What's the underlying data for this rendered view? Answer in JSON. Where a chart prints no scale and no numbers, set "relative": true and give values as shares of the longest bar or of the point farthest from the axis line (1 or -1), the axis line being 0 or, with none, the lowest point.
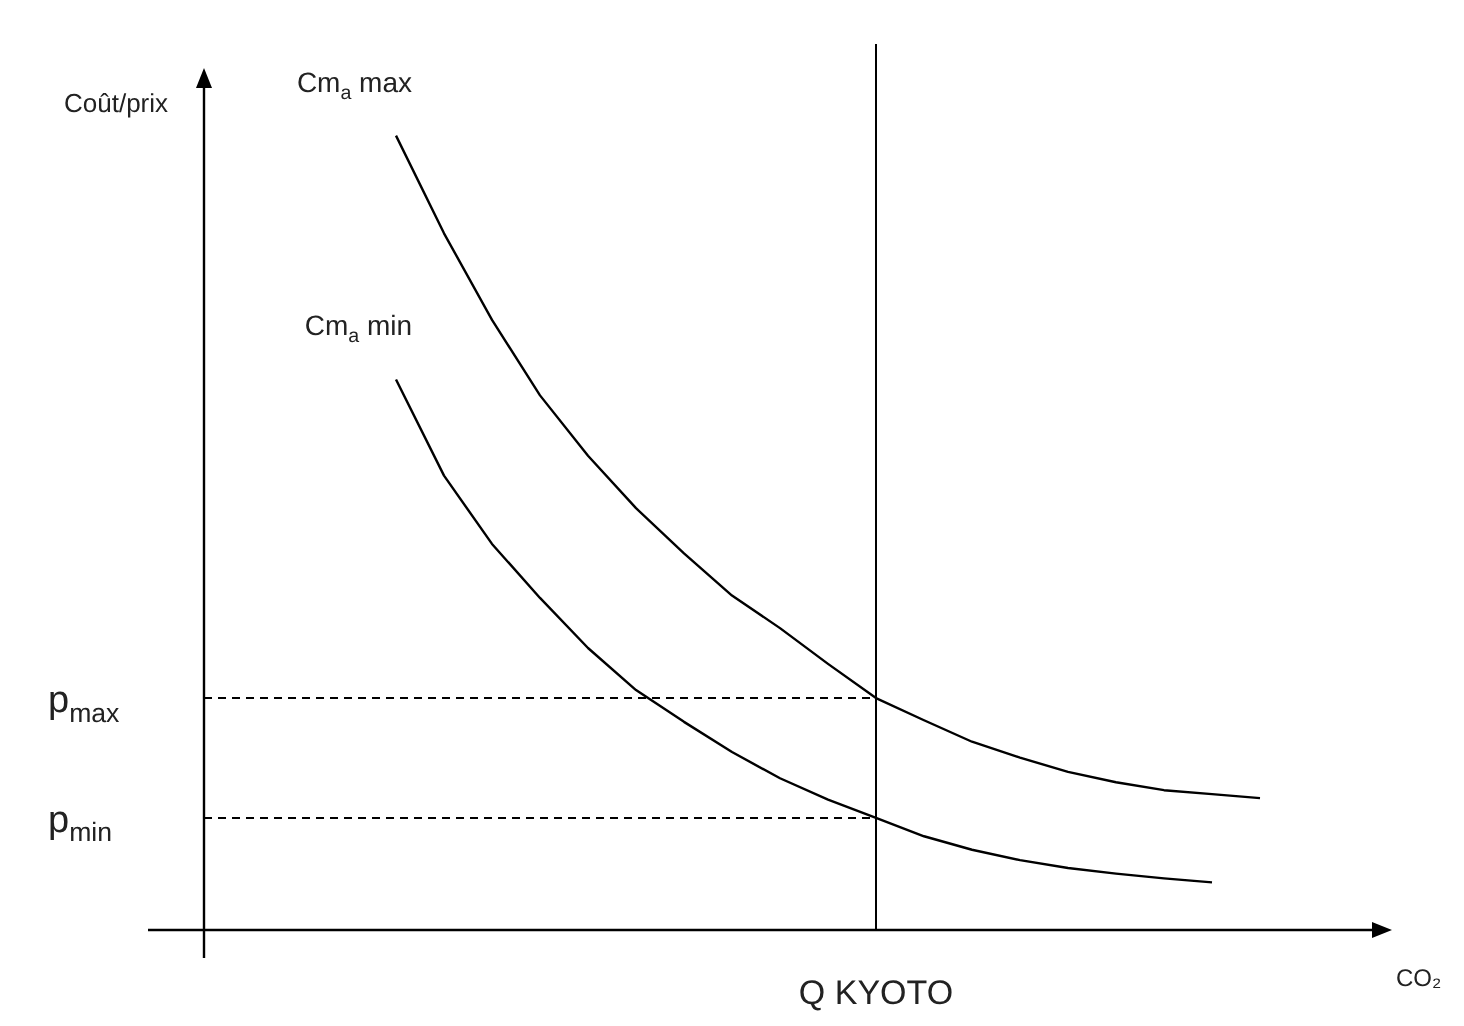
{
  "chart_data": {
    "type": "line",
    "relative": true,
    "xlabel": "CO₂",
    "ylabel": "Coût/prix",
    "marker": "none",
    "line_style": "solid",
    "categories": [
      null,
      null,
      null,
      null,
      null,
      null,
      null,
      null,
      null,
      null,
      null,
      null,
      null,
      null,
      null,
      null,
      null,
      null,
      null,
      null,
      null,
      null,
      null,
      null,
      null
    ],
    "series": [
      {
        "name": "Cm$_{a}$ max",
        "color": "#000000",
        "values": [
          null,
          null,
          null,
          null,
          1.0,
          0.877,
          0.768,
          0.673,
          0.597,
          0.531,
          0.474,
          0.421,
          0.38,
          0.335,
          0.292,
          0.264,
          0.237,
          0.217,
          0.199,
          0.186,
          0.176,
          0.171,
          0.166,
          null,
          null
        ]
      },
      {
        "name": "Cm$_{a}$ min",
        "color": "#000000",
        "values": [
          null,
          null,
          null,
          null,
          0.693,
          0.572,
          0.486,
          0.418,
          0.355,
          0.302,
          0.262,
          0.224,
          0.191,
          0.164,
          0.141,
          0.118,
          0.101,
          0.088,
          0.078,
          0.071,
          0.065,
          0.06,
          null,
          null,
          null
        ]
      },
      {
        "name": "p$_{max}$",
        "color": "#000000",
        "line_style": "dashed",
        "values": [
          0.292,
          0.292,
          0.292,
          0.292,
          0.292,
          0.292,
          0.292,
          0.292,
          0.292,
          0.292,
          0.292,
          0.292,
          0.292,
          0.292,
          0.292,
          null,
          null,
          null,
          null,
          null,
          null,
          null,
          null,
          null,
          null
        ]
      },
      {
        "name": "p$_{min}$",
        "color": "#000000",
        "line_style": "dashed",
        "values": [
          0.141,
          0.141,
          0.141,
          0.141,
          0.141,
          0.141,
          0.141,
          0.141,
          0.141,
          0.141,
          0.141,
          0.141,
          0.141,
          0.141,
          0.141,
          null,
          null,
          null,
          null,
          null,
          null,
          null,
          null,
          null,
          null
        ]
      }
    ],
    "ref_lines": [
      {
        "axis": "x",
        "label": "Q KYOTO",
        "color": "#000000",
        "line_style": "solid"
      }
    ]
  }
}
